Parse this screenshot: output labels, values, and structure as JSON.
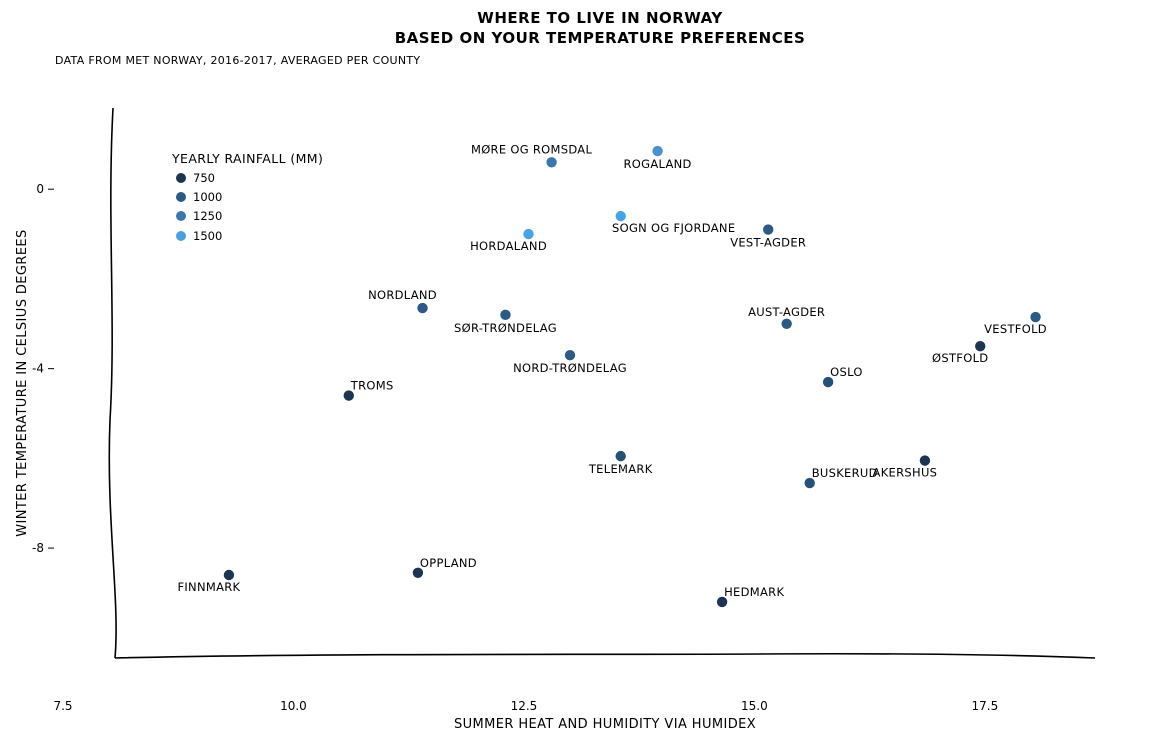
{
  "chart_data": {
    "type": "scatter",
    "title": [
      "WHERE TO LIVE IN NORWAY",
      "BASED ON YOUR TEMPERATURE PREFERENCES"
    ],
    "subtitle": "DATA FROM MET NORWAY, 2016-2017, AVERAGED PER COUNTY",
    "xlabel": "SUMMER HEAT AND HUMIDITY VIA HUMIDEX",
    "ylabel": "WINTER TEMPERATURE IN CELSIUS DEGREES",
    "xlim": [
      7.5,
      19.4
    ],
    "ylim": [
      -10.45,
      2.1
    ],
    "xticks": [
      7.5,
      10.0,
      12.5,
      15.0,
      17.5
    ],
    "xtick_labels": [
      "7.5",
      "10.0",
      "12.5",
      "15.0",
      "17.5"
    ],
    "yticks": [
      0,
      -4,
      -8
    ],
    "ytick_labels": [
      "0",
      "-4",
      "-8"
    ],
    "grid": false,
    "legend": {
      "title": "YEARLY RAINFALL (MM)",
      "placement": "top-left",
      "items": [
        {
          "label": "750",
          "color": "#1b3552"
        },
        {
          "label": "1000",
          "color": "#2b5a85"
        },
        {
          "label": "1250",
          "color": "#3a77ad"
        },
        {
          "label": "1500",
          "color": "#4a9fe0"
        }
      ]
    },
    "points": [
      {
        "name": "MØRE OG ROMSDAL",
        "x": 12.8,
        "y": 0.6,
        "rainfall": 1250,
        "color": "#3a77ad",
        "label_pos": "above-left"
      },
      {
        "name": "ROGALAND",
        "x": 13.95,
        "y": 0.85,
        "rainfall": 1500,
        "color": "#4a92cf",
        "label_pos": "below"
      },
      {
        "name": "SOGN OG FJORDANE",
        "x": 13.55,
        "y": -0.6,
        "rainfall": 1500,
        "color": "#4aa3e6",
        "label_pos": "below-right"
      },
      {
        "name": "HORDALAND",
        "x": 12.55,
        "y": -1.0,
        "rainfall": 1500,
        "color": "#4aa3e6",
        "label_pos": "below-left"
      },
      {
        "name": "VEST-AGDER",
        "x": 15.15,
        "y": -0.9,
        "rainfall": 1000,
        "color": "#2b5a85",
        "label_pos": "below"
      },
      {
        "name": "NORDLAND",
        "x": 11.4,
        "y": -2.65,
        "rainfall": 1000,
        "color": "#2b5a85",
        "label_pos": "above-left"
      },
      {
        "name": "SØR-TRØNDELAG",
        "x": 12.3,
        "y": -2.8,
        "rainfall": 1000,
        "color": "#2b5a85",
        "label_pos": "below"
      },
      {
        "name": "NORD-TRØNDELAG",
        "x": 13.0,
        "y": -3.7,
        "rainfall": 1000,
        "color": "#2b5a85",
        "label_pos": "below"
      },
      {
        "name": "AUST-AGDER",
        "x": 15.35,
        "y": -3.0,
        "rainfall": 1000,
        "color": "#2b5a85",
        "label_pos": "above"
      },
      {
        "name": "VESTFOLD",
        "x": 18.05,
        "y": -2.85,
        "rainfall": 1000,
        "color": "#2b5a85",
        "label_pos": "below-left"
      },
      {
        "name": "ØSTFOLD",
        "x": 17.45,
        "y": -3.5,
        "rainfall": 750,
        "color": "#1b3552",
        "label_pos": "below-left"
      },
      {
        "name": "OSLO",
        "x": 15.8,
        "y": -4.3,
        "rainfall": 1000,
        "color": "#24507a",
        "label_pos": "above-right"
      },
      {
        "name": "TROMS",
        "x": 10.6,
        "y": -4.6,
        "rainfall": 750,
        "color": "#1b3552",
        "label_pos": "above-right"
      },
      {
        "name": "TELEMARK",
        "x": 13.55,
        "y": -5.95,
        "rainfall": 1000,
        "color": "#24507a",
        "label_pos": "below"
      },
      {
        "name": "BUSKERUD",
        "x": 15.6,
        "y": -6.55,
        "rainfall": 1000,
        "color": "#24507a",
        "label_pos": "above-right"
      },
      {
        "name": "AKERSHUS",
        "x": 16.85,
        "y": -6.05,
        "rainfall": 750,
        "color": "#1b3552",
        "label_pos": "below-left"
      },
      {
        "name": "FINNMARK",
        "x": 9.3,
        "y": -8.6,
        "rainfall": 750,
        "color": "#1b3552",
        "label_pos": "below-left"
      },
      {
        "name": "OPPLAND",
        "x": 11.35,
        "y": -8.55,
        "rainfall": 750,
        "color": "#1b3552",
        "label_pos": "above-right"
      },
      {
        "name": "HEDMARK",
        "x": 14.65,
        "y": -9.2,
        "rainfall": 750,
        "color": "#1b3552",
        "label_pos": "above-right"
      }
    ]
  }
}
